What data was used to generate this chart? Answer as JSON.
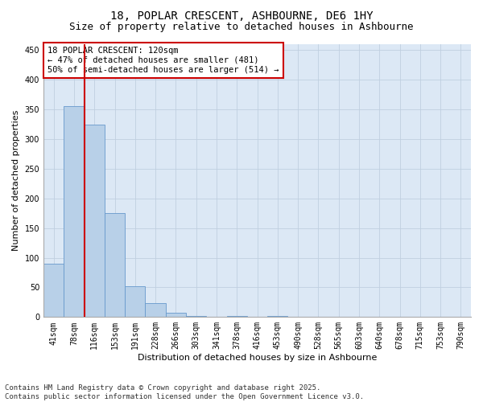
{
  "title_line1": "18, POPLAR CRESCENT, ASHBOURNE, DE6 1HY",
  "title_line2": "Size of property relative to detached houses in Ashbourne",
  "xlabel": "Distribution of detached houses by size in Ashbourne",
  "ylabel": "Number of detached properties",
  "categories": [
    "41sqm",
    "78sqm",
    "116sqm",
    "153sqm",
    "191sqm",
    "228sqm",
    "266sqm",
    "303sqm",
    "341sqm",
    "378sqm",
    "416sqm",
    "453sqm",
    "490sqm",
    "528sqm",
    "565sqm",
    "603sqm",
    "640sqm",
    "678sqm",
    "715sqm",
    "753sqm",
    "790sqm"
  ],
  "values": [
    90,
    355,
    325,
    175,
    52,
    23,
    7,
    2,
    0,
    2,
    0,
    2,
    1,
    1,
    0,
    1,
    0,
    1,
    1,
    0,
    1
  ],
  "bar_color": "#b8d0e8",
  "bar_edge_color": "#6699cc",
  "vline_color": "#cc0000",
  "vline_position": 1.5,
  "annotation_box_text": "18 POPLAR CRESCENT: 120sqm\n← 47% of detached houses are smaller (481)\n50% of semi-detached houses are larger (514) →",
  "annotation_box_color": "#cc0000",
  "background_color": "#ffffff",
  "plot_bg_color": "#dce8f5",
  "grid_color": "#c0cfe0",
  "ylim": [
    0,
    460
  ],
  "yticks": [
    0,
    50,
    100,
    150,
    200,
    250,
    300,
    350,
    400,
    450
  ],
  "footer_text": "Contains HM Land Registry data © Crown copyright and database right 2025.\nContains public sector information licensed under the Open Government Licence v3.0.",
  "title_fontsize": 10,
  "subtitle_fontsize": 9,
  "axis_label_fontsize": 8,
  "tick_fontsize": 7,
  "annotation_fontsize": 7.5,
  "footer_fontsize": 6.5
}
